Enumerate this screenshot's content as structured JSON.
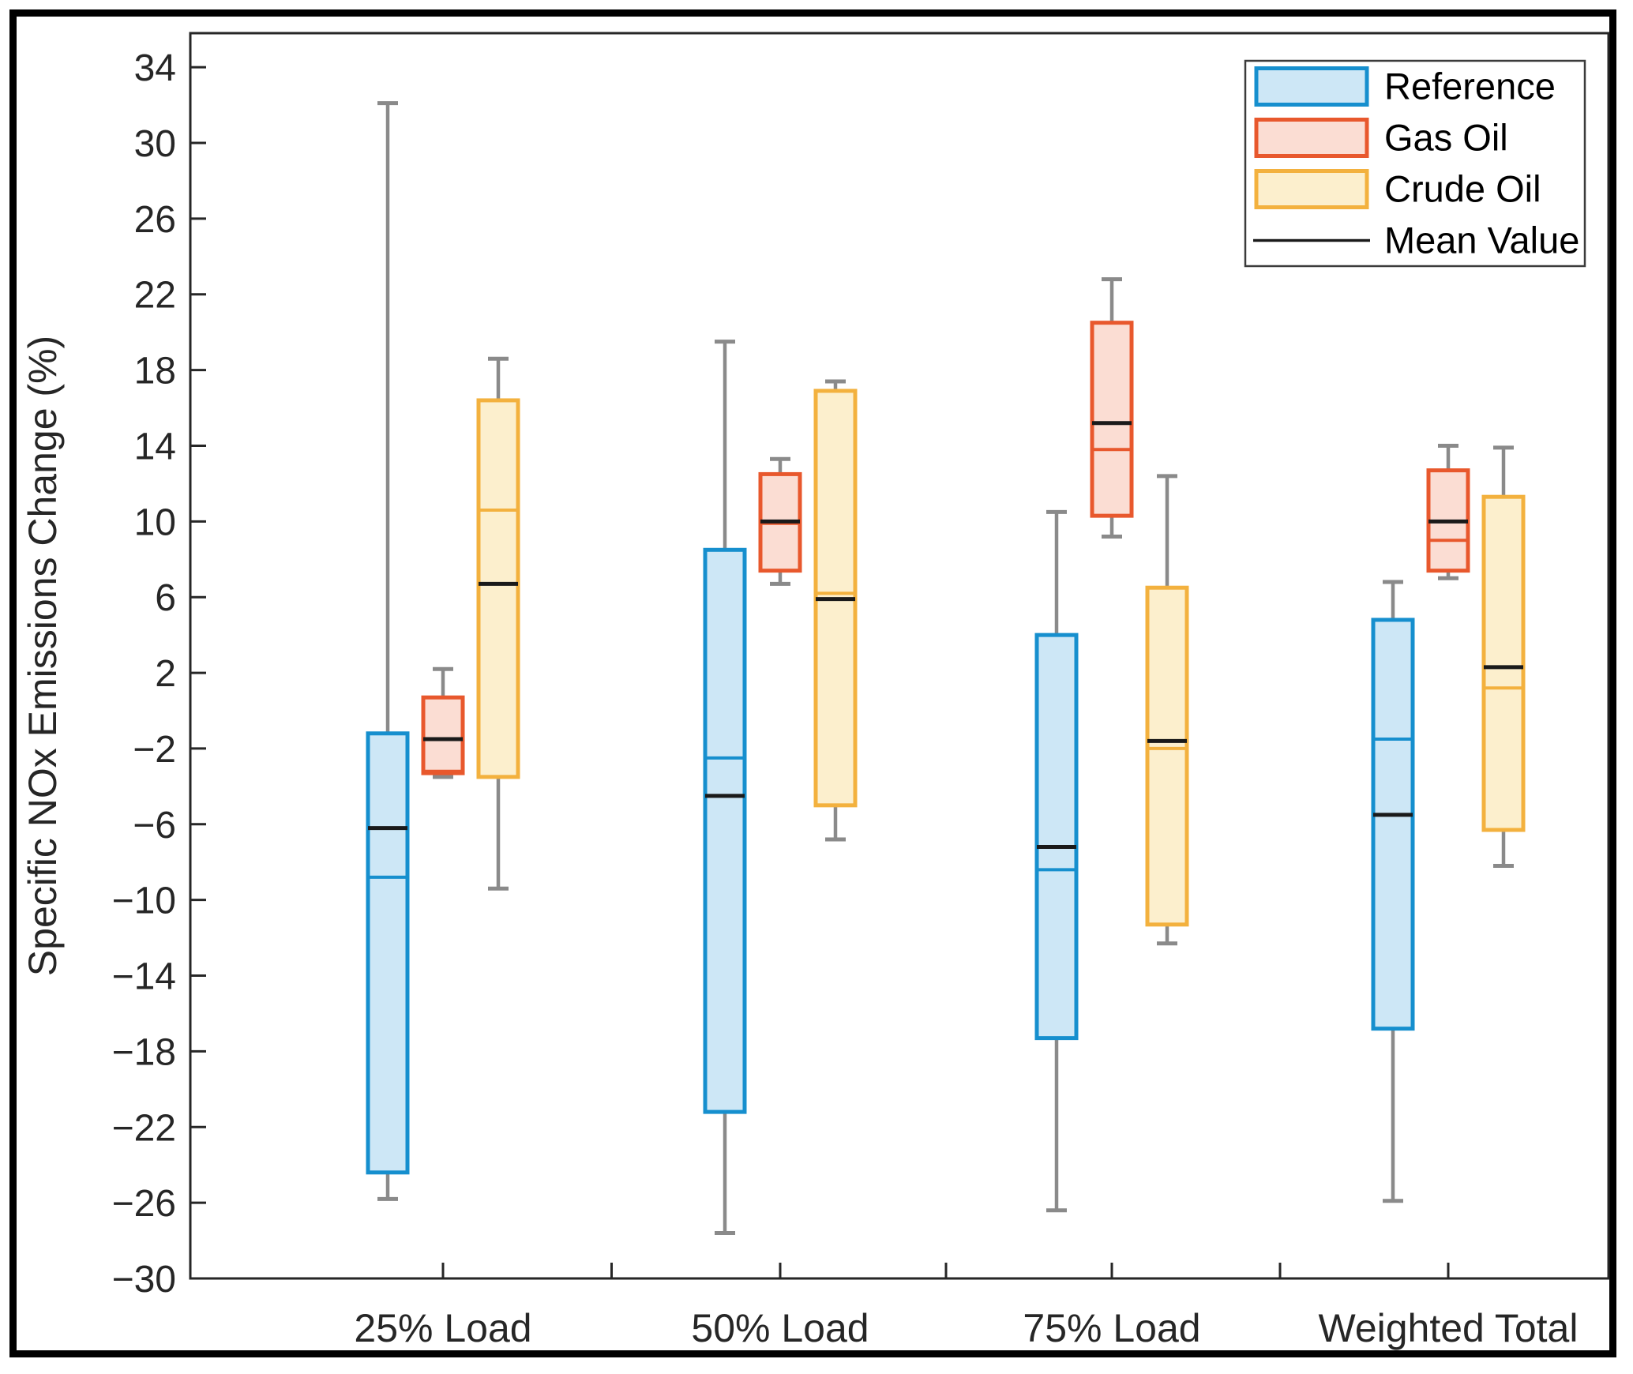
{
  "figure": {
    "background": "#ffffff",
    "frame_color": "#000000",
    "axis_color": "#262626",
    "text_color": "#262626",
    "whisker_color": "#8a8a8a",
    "mean_line_color": "#1a1a1a"
  },
  "chart_data": {
    "type": "boxplot",
    "title": "",
    "xlabel": "",
    "ylabel": "Specific NOx Emissions Change (%)",
    "categories": [
      "25% Load",
      "50% Load",
      "75% Load",
      "Weighted Total"
    ],
    "ylim": [
      -30,
      35.8
    ],
    "yticks": [
      -30,
      -26,
      -22,
      -18,
      -14,
      -10,
      -6,
      -2,
      2,
      6,
      10,
      14,
      18,
      22,
      26,
      30,
      34
    ],
    "grid": false,
    "legend_position": "top-right",
    "legend": [
      {
        "label": "Reference",
        "type": "box"
      },
      {
        "label": "Gas Oil",
        "type": "box"
      },
      {
        "label": "Crude Oil",
        "type": "box"
      },
      {
        "label": "Mean Value",
        "type": "line"
      }
    ],
    "series": [
      {
        "name": "Reference",
        "edge_color": "#168fce",
        "fill_color": "#cde7f6",
        "boxes": [
          {
            "category": "25% Load",
            "whisker_low": -25.8,
            "q1": -24.4,
            "median": -8.8,
            "mean": -6.2,
            "q3": -1.2,
            "whisker_high": 32.1
          },
          {
            "category": "50% Load",
            "whisker_low": -27.6,
            "q1": -21.2,
            "median": -2.5,
            "mean": -4.5,
            "q3": 8.5,
            "whisker_high": 19.5
          },
          {
            "category": "75% Load",
            "whisker_low": -26.4,
            "q1": -17.3,
            "median": -8.4,
            "mean": -7.2,
            "q3": 4.0,
            "whisker_high": 10.5
          },
          {
            "category": "Weighted Total",
            "whisker_low": -25.9,
            "q1": -16.8,
            "median": -1.5,
            "mean": -5.5,
            "q3": 4.8,
            "whisker_high": 6.8
          }
        ]
      },
      {
        "name": "Gas Oil",
        "edge_color": "#e8582d",
        "fill_color": "#fbddd3",
        "boxes": [
          {
            "category": "25% Load",
            "whisker_low": -3.5,
            "q1": -3.3,
            "median": -3.2,
            "mean": -1.5,
            "q3": 0.7,
            "whisker_high": 2.2
          },
          {
            "category": "50% Load",
            "whisker_low": 6.7,
            "q1": 7.4,
            "median": 9.9,
            "mean": 10.0,
            "q3": 12.5,
            "whisker_high": 13.3
          },
          {
            "category": "75% Load",
            "whisker_low": 9.2,
            "q1": 10.3,
            "median": 13.8,
            "mean": 15.2,
            "q3": 20.5,
            "whisker_high": 22.8
          },
          {
            "category": "Weighted Total",
            "whisker_low": 7.0,
            "q1": 7.4,
            "median": 9.0,
            "mean": 10.0,
            "q3": 12.7,
            "whisker_high": 14.0
          }
        ]
      },
      {
        "name": "Crude Oil",
        "edge_color": "#f3b13e",
        "fill_color": "#fcefcd",
        "boxes": [
          {
            "category": "25% Load",
            "whisker_low": -9.4,
            "q1": -3.5,
            "median": 10.6,
            "mean": 6.7,
            "q3": 16.4,
            "whisker_high": 18.6
          },
          {
            "category": "50% Load",
            "whisker_low": -6.8,
            "q1": -5.0,
            "median": 6.2,
            "mean": 5.9,
            "q3": 16.9,
            "whisker_high": 17.4
          },
          {
            "category": "75% Load",
            "whisker_low": -12.3,
            "q1": -11.3,
            "median": -2.0,
            "mean": -1.6,
            "q3": 6.5,
            "whisker_high": 12.4
          },
          {
            "category": "Weighted Total",
            "whisker_low": -8.2,
            "q1": -6.3,
            "median": 1.2,
            "mean": 2.3,
            "q3": 11.3,
            "whisker_high": 13.9
          }
        ]
      }
    ]
  }
}
